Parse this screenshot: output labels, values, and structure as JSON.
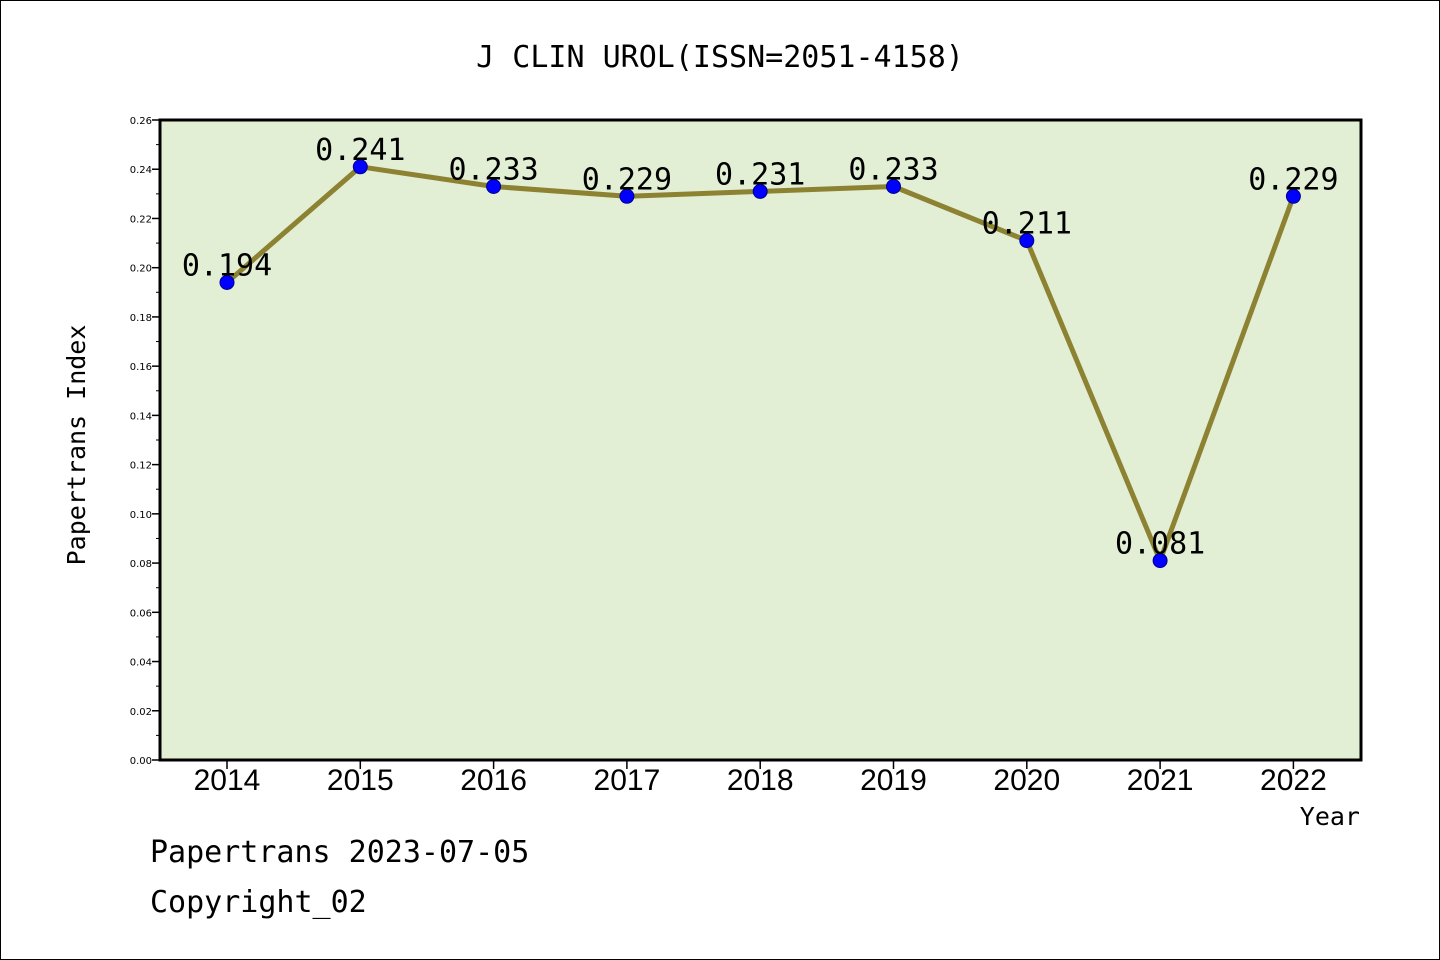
{
  "chart_data": {
    "type": "line",
    "title": "J CLIN UROL(ISSN=2051-4158)",
    "xlabel": "Year",
    "ylabel": "Papertrans Index",
    "categories": [
      "2014",
      "2015",
      "2016",
      "2017",
      "2018",
      "2019",
      "2020",
      "2021",
      "2022"
    ],
    "series": [
      {
        "values": [
          0.194,
          0.241,
          0.233,
          0.229,
          0.231,
          0.233,
          0.211,
          0.081,
          0.229
        ]
      }
    ],
    "data_labels": [
      "0.194",
      "0.241",
      "0.233",
      "0.229",
      "0.231",
      "0.233",
      "0.211",
      "0.081",
      "0.229"
    ],
    "ylim": [
      0,
      0.26
    ],
    "yticks": [
      "0.00",
      "0.02",
      "0.04",
      "0.06",
      "0.08",
      "0.10",
      "0.12",
      "0.14",
      "0.16",
      "0.18",
      "0.20",
      "0.22",
      "0.24",
      "0.26"
    ],
    "grid": false,
    "colors": {
      "plot_bg": "#e2efd5",
      "line": "#8c8232",
      "marker": "#0000ff"
    }
  },
  "footer": {
    "line1": "Papertrans 2023-07-05",
    "line2": "Copyright_02"
  }
}
